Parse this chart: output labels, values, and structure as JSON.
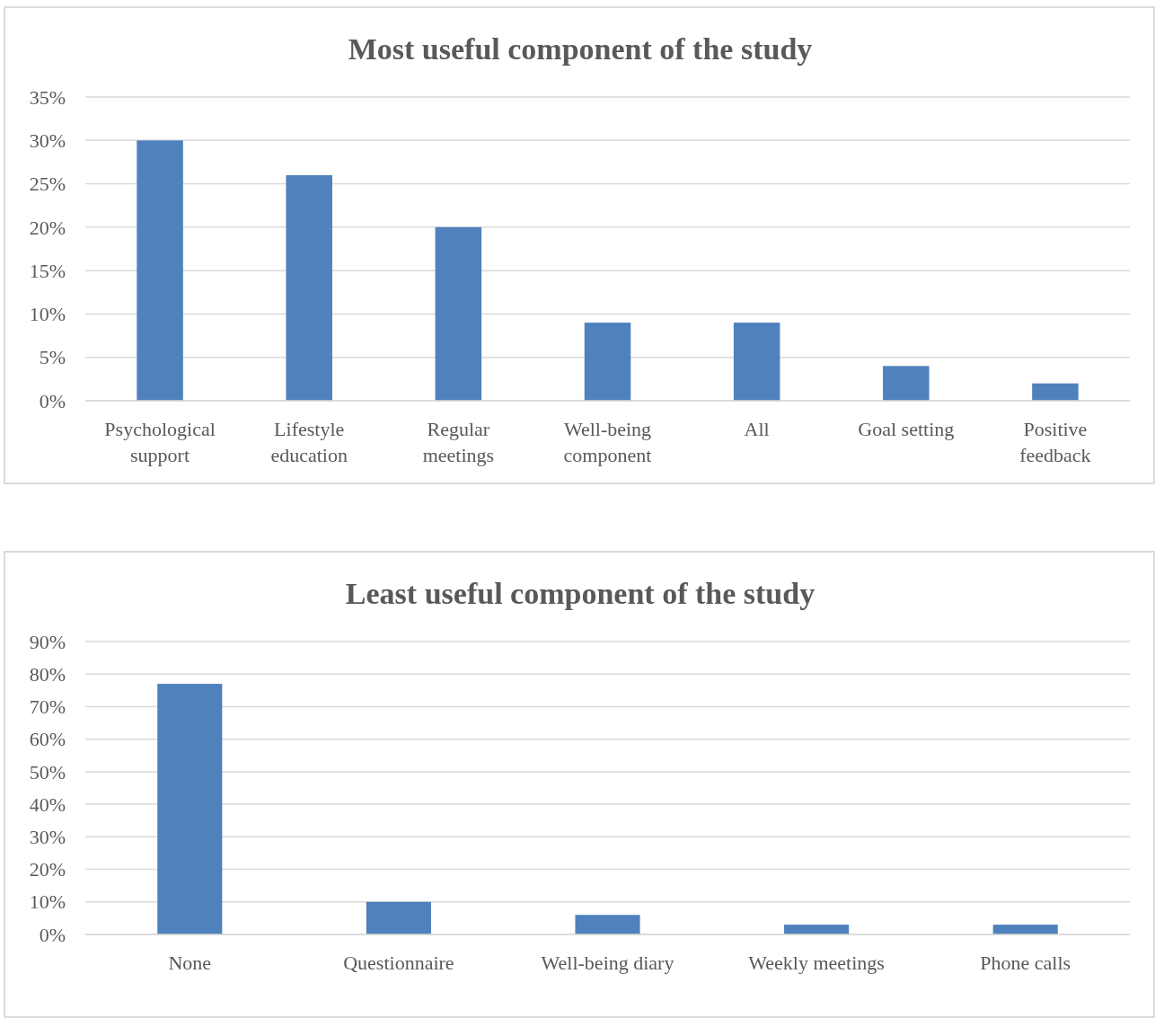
{
  "chart_data": [
    {
      "type": "bar",
      "title": "Most useful component of the study",
      "categories": [
        "Psychological support",
        "Lifestyle education",
        "Regular meetings",
        "Well-being component",
        "All",
        "Goal setting",
        "Positive feedback"
      ],
      "values": [
        30,
        26,
        20,
        9,
        9,
        4,
        2
      ],
      "color": "#4f81bd",
      "ylim": [
        0,
        35
      ],
      "yticks": [
        {
          "value": 0,
          "label": "0%"
        },
        {
          "value": 5,
          "label": "5%"
        },
        {
          "value": 10,
          "label": "10%"
        },
        {
          "value": 15,
          "label": "15%"
        },
        {
          "value": 20,
          "label": "20%"
        },
        {
          "value": 25,
          "label": "25%"
        },
        {
          "value": 30,
          "label": "30%"
        },
        {
          "value": 35,
          "label": "35%"
        }
      ],
      "grid": "y"
    },
    {
      "type": "bar",
      "title": "Least useful component of the study",
      "categories": [
        "None",
        "Questionnaire",
        "Well-being diary",
        "Weekly meetings",
        "Phone calls"
      ],
      "values": [
        77,
        10,
        6,
        3,
        3
      ],
      "color": "#4f81bd",
      "ylim": [
        0,
        90
      ],
      "yticks": [
        {
          "value": 0,
          "label": "0%"
        },
        {
          "value": 10,
          "label": "10%"
        },
        {
          "value": 20,
          "label": "20%"
        },
        {
          "value": 30,
          "label": "30%"
        },
        {
          "value": 40,
          "label": "40%"
        },
        {
          "value": 50,
          "label": "50%"
        },
        {
          "value": 60,
          "label": "60%"
        },
        {
          "value": 70,
          "label": "70%"
        },
        {
          "value": 80,
          "label": "80%"
        },
        {
          "value": 90,
          "label": "90%"
        }
      ],
      "grid": "y"
    }
  ]
}
